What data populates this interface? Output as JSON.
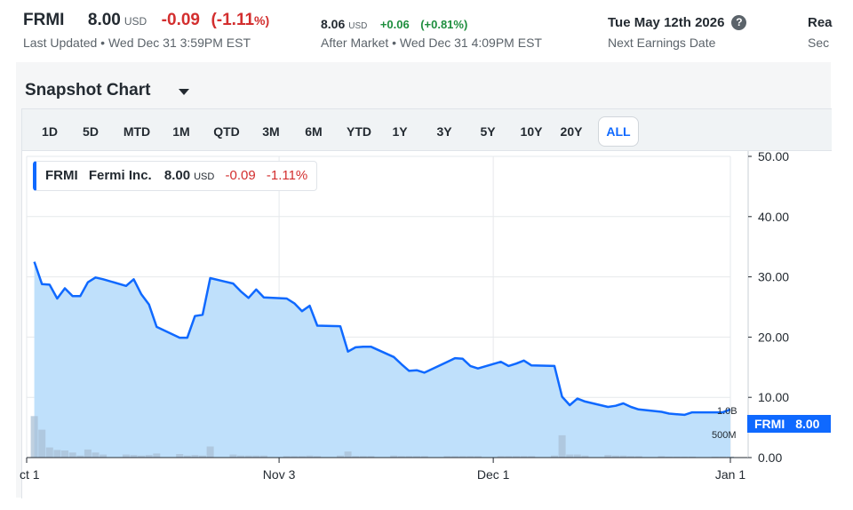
{
  "quote": {
    "symbol": "FRMI",
    "price": "8.00",
    "currency": "USD",
    "change": "-0.09",
    "change_pct": "(-1.11",
    "pct_sign": "%)",
    "last_updated": "Last Updated • Wed Dec 31 3:59PM EST"
  },
  "after_market": {
    "price": "8.06",
    "currency": "USD",
    "change": "+0.06",
    "change_pct": "(+0.81%)",
    "label": "After Market • Wed Dec 31 4:09PM EST"
  },
  "earnings": {
    "date": "Tue May 12th 2026",
    "label": "Next Earnings Date",
    "help_icon": "question-circle-icon"
  },
  "cut_off": {
    "title": "Rea",
    "sub": "Sec"
  },
  "snapshot": {
    "title": "Snapshot Chart",
    "dropdown_icon": "caret-down-icon"
  },
  "ranges": [
    "1D",
    "5D",
    "MTD",
    "1M",
    "QTD",
    "3M",
    "6M",
    "YTD",
    "1Y",
    "3Y",
    "5Y",
    "10Y",
    "20Y",
    "ALL"
  ],
  "active_range": "ALL",
  "legend": {
    "symbol": "FRMI",
    "name": "Fermi Inc.",
    "price": "8.00",
    "currency": "USD",
    "change": "-0.09",
    "change_pct": "-1.11%"
  },
  "price_tag": {
    "symbol": "FRMI",
    "value": "8.00"
  },
  "colors": {
    "line": "#0f69ff",
    "area": "#bfe0fb",
    "red": "#d32f2f",
    "green": "#1e8e3e"
  },
  "chart_data": {
    "type": "area",
    "y_ticks": [
      "50.00",
      "40.00",
      "30.00",
      "20.00",
      "10.00",
      "0.00"
    ],
    "ylim": [
      0,
      50
    ],
    "x_ticks": [
      {
        "label": "ct 1",
        "day": 0
      },
      {
        "label": "Nov 3",
        "day": 33
      },
      {
        "label": "Dec 1",
        "day": 61
      },
      {
        "label": "Jan 1",
        "day": 92
      }
    ],
    "xlim": [
      0,
      92
    ],
    "vol_ticks": [
      "1.0B",
      "500M"
    ],
    "vol_max": 1000000000,
    "series": [
      {
        "x": [
          1,
          2,
          3,
          4,
          5,
          6,
          7,
          8,
          9,
          10,
          13,
          14,
          15,
          16,
          17,
          20,
          21,
          22,
          23,
          24,
          27,
          28,
          29,
          30,
          31,
          34,
          35,
          36,
          37,
          38,
          41,
          42,
          43,
          44,
          45,
          48,
          49,
          50,
          51,
          52,
          55,
          56,
          57,
          58,
          59,
          62,
          63,
          64,
          65,
          66,
          69,
          70,
          71,
          72,
          73,
          76,
          77,
          78,
          79,
          80,
          83,
          84,
          85,
          86,
          87,
          90,
          91,
          92
        ],
        "y": [
          32.5,
          28.8,
          28.7,
          26.4,
          28.1,
          26.8,
          26.8,
          29.1,
          29.9,
          29.6,
          28.5,
          29.6,
          27.1,
          25.4,
          21.7,
          19.9,
          19.9,
          23.5,
          23.7,
          29.8,
          28.9,
          27.6,
          26.5,
          27.9,
          26.6,
          26.4,
          25.6,
          24.3,
          25.2,
          21.9,
          21.8,
          17.6,
          18.3,
          18.4,
          18.4,
          16.7,
          15.5,
          14.4,
          14.5,
          14.1,
          15.9,
          16.5,
          16.4,
          15.2,
          14.8,
          15.9,
          15.2,
          15.6,
          16.1,
          15.3,
          15.2,
          10.1,
          8.7,
          9.8,
          9.3,
          8.4,
          8.6,
          9.0,
          8.4,
          8.0,
          7.6,
          7.3,
          7.2,
          7.1,
          7.5,
          7.5,
          7.5,
          8.0
        ],
        "volume": [
          820000000,
          550000000,
          200000000,
          150000000,
          140000000,
          100000000,
          40000000,
          160000000,
          100000000,
          60000000,
          60000000,
          50000000,
          40000000,
          50000000,
          80000000,
          70000000,
          40000000,
          50000000,
          40000000,
          220000000,
          60000000,
          40000000,
          40000000,
          40000000,
          40000000,
          30000000,
          30000000,
          30000000,
          40000000,
          30000000,
          40000000,
          120000000,
          30000000,
          30000000,
          30000000,
          40000000,
          30000000,
          30000000,
          30000000,
          30000000,
          30000000,
          30000000,
          30000000,
          30000000,
          30000000,
          30000000,
          30000000,
          30000000,
          30000000,
          30000000,
          40000000,
          440000000,
          60000000,
          60000000,
          40000000,
          50000000,
          40000000,
          40000000,
          30000000,
          30000000,
          30000000,
          20000000,
          20000000,
          20000000,
          20000000,
          20000000,
          20000000,
          20000000
        ]
      }
    ]
  }
}
